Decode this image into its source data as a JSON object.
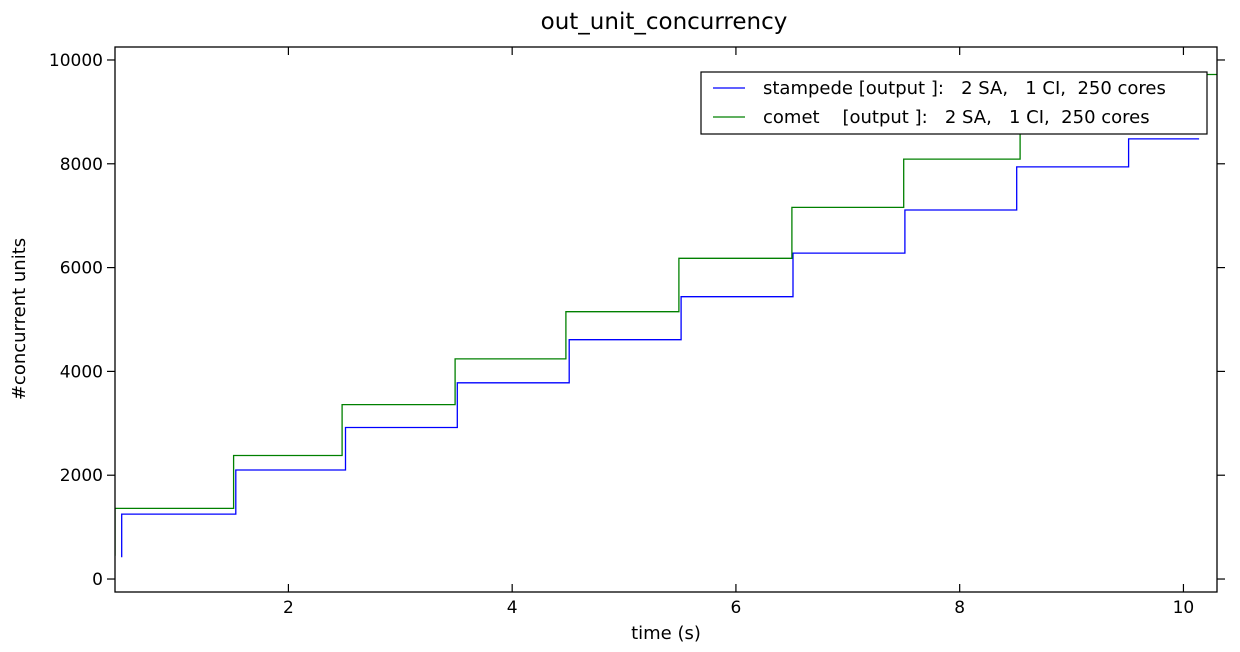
{
  "chart_data": {
    "type": "line",
    "title": "out_unit_concurrency",
    "xlabel": "time (s)",
    "ylabel": "#concurrent units",
    "xlim": [
      0.45,
      10.3
    ],
    "ylim": [
      -250,
      10250
    ],
    "xticks": [
      2,
      4,
      6,
      8,
      10
    ],
    "yticks": [
      0,
      2000,
      4000,
      6000,
      8000,
      10000
    ],
    "grid": false,
    "legend_position": "top-right",
    "series": [
      {
        "name": "stampede [output ]:   2 SA,   1 CI,  250 cores",
        "color": "#0000ff",
        "x": [
          0.51,
          0.51,
          1.53,
          1.53,
          2.51,
          2.51,
          3.51,
          3.51,
          4.51,
          4.51,
          5.51,
          5.51,
          6.51,
          6.51,
          7.51,
          7.51,
          8.51,
          8.51,
          9.51,
          9.51,
          10.14
        ],
        "y": [
          420,
          1250,
          1250,
          2100,
          2100,
          2920,
          2920,
          3780,
          3780,
          4610,
          4610,
          5440,
          5440,
          6280,
          6280,
          7110,
          7110,
          7940,
          7940,
          8480,
          8480
        ]
      },
      {
        "name": "comet    [output ]:   2 SA,   1 CI,  250 cores",
        "color": "#008000",
        "x": [
          0.45,
          0.45,
          1.51,
          1.51,
          2.48,
          2.48,
          3.49,
          3.49,
          4.48,
          4.48,
          5.49,
          5.49,
          6.5,
          6.5,
          7.5,
          7.5,
          8.54,
          8.54,
          9.51,
          9.51,
          10.3
        ],
        "y": [
          450,
          1360,
          1360,
          2380,
          2380,
          3360,
          3360,
          4240,
          4240,
          5150,
          5150,
          6180,
          6180,
          7160,
          7160,
          8090,
          8090,
          9000,
          9000,
          9720,
          9720
        ]
      }
    ]
  }
}
